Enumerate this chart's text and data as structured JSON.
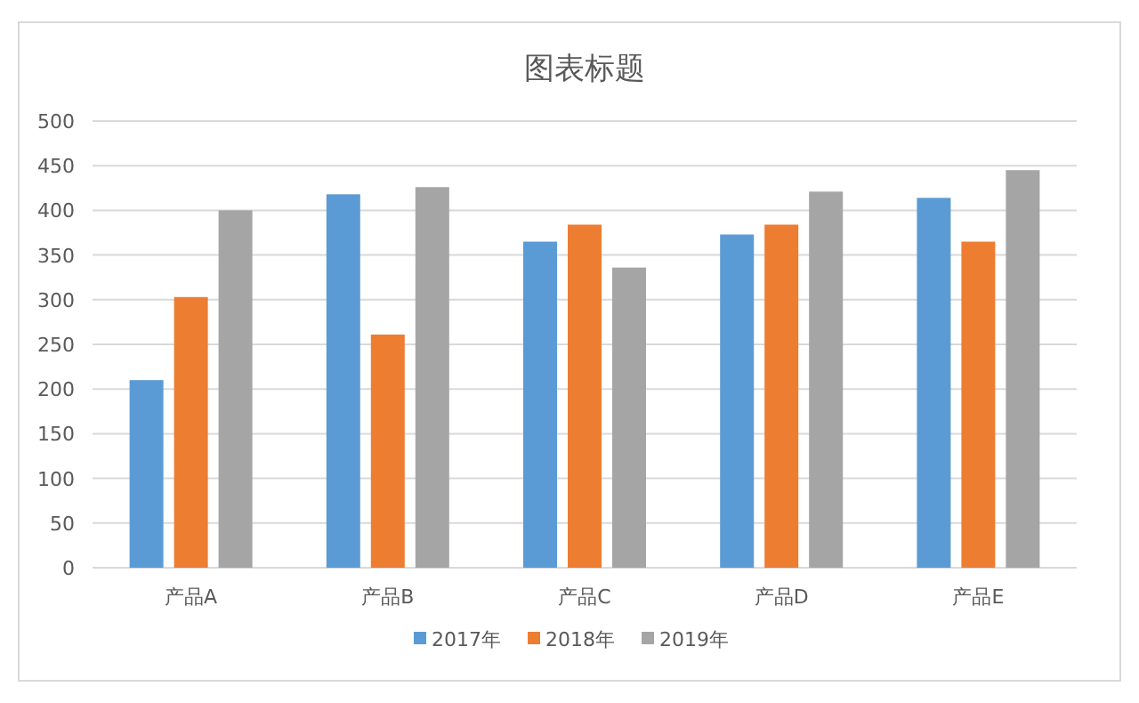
{
  "chart_data": {
    "type": "bar",
    "title": "图表标题",
    "categories": [
      "产品A",
      "产品B",
      "产品C",
      "产品D",
      "产品E"
    ],
    "series": [
      {
        "name": "2017年",
        "color": "#5b9bd5",
        "values": [
          210,
          418,
          365,
          373,
          414
        ]
      },
      {
        "name": "2018年",
        "color": "#ed7d31",
        "values": [
          303,
          261,
          384,
          384,
          365
        ]
      },
      {
        "name": "2019年",
        "color": "#a5a5a5",
        "values": [
          400,
          426,
          336,
          421,
          445
        ]
      }
    ],
    "ylim": [
      0,
      500
    ],
    "yticks": [
      0,
      50,
      100,
      150,
      200,
      250,
      300,
      350,
      400,
      450,
      500
    ],
    "grid": "y",
    "legend": "bottom"
  }
}
